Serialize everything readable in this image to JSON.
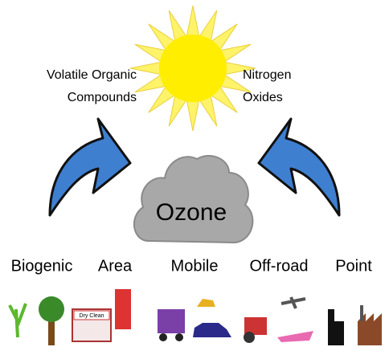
{
  "labels": {
    "left": [
      "Volatile Organic",
      "Compounds"
    ],
    "right": [
      "Nitrogen",
      "Oxides"
    ]
  },
  "center": "Ozone",
  "sources": [
    "Biogenic",
    "Area",
    "Mobile",
    "Off-road",
    "Point"
  ],
  "icon_texts": {
    "dry_clean": "Dry Clean"
  }
}
